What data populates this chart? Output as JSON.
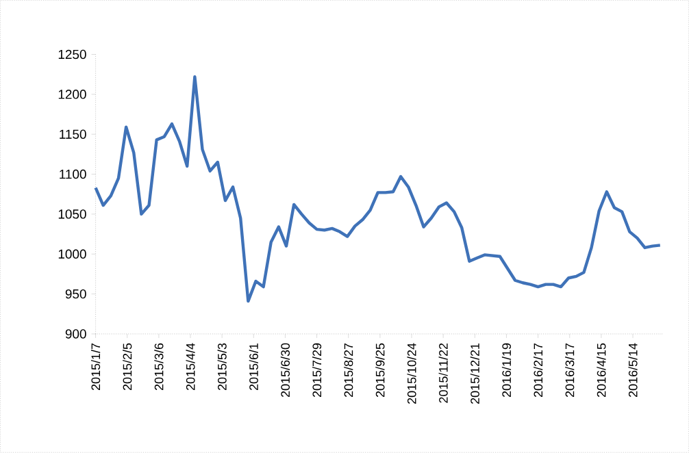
{
  "chart_data": {
    "type": "line",
    "color": "#3f72b8",
    "line_style": "solid",
    "marker": "none",
    "x": [
      "2015-01-07",
      "2015-01-14",
      "2015-01-21",
      "2015-01-28",
      "2015-02-04",
      "2015-02-11",
      "2015-02-18",
      "2015-02-25",
      "2015-03-04",
      "2015-03-11",
      "2015-03-18",
      "2015-03-25",
      "2015-04-01",
      "2015-04-08",
      "2015-04-15",
      "2015-04-22",
      "2015-04-29",
      "2015-05-06",
      "2015-05-13",
      "2015-05-20",
      "2015-05-27",
      "2015-06-03",
      "2015-06-10",
      "2015-06-17",
      "2015-06-24",
      "2015-07-01",
      "2015-07-08",
      "2015-07-15",
      "2015-07-22",
      "2015-07-29",
      "2015-08-05",
      "2015-08-12",
      "2015-08-19",
      "2015-08-26",
      "2015-09-02",
      "2015-09-09",
      "2015-09-16",
      "2015-09-23",
      "2015-09-30",
      "2015-10-07",
      "2015-10-14",
      "2015-10-21",
      "2015-10-28",
      "2015-11-04",
      "2015-11-11",
      "2015-11-18",
      "2015-11-25",
      "2015-12-02",
      "2015-12-09",
      "2015-12-16",
      "2015-12-23",
      "2015-12-30",
      "2016-01-06",
      "2016-01-13",
      "2016-01-20",
      "2016-01-27",
      "2016-02-03",
      "2016-02-10",
      "2016-02-17",
      "2016-02-24",
      "2016-03-02",
      "2016-03-09",
      "2016-03-16",
      "2016-03-23",
      "2016-03-30",
      "2016-04-06",
      "2016-04-13",
      "2016-04-20",
      "2016-04-27",
      "2016-05-04",
      "2016-05-11",
      "2016-05-18",
      "2016-05-25",
      "2016-06-01",
      "2016-06-08"
    ],
    "values": [
      1083,
      1061,
      1073,
      1095,
      1159,
      1127,
      1050,
      1061,
      1143,
      1147,
      1163,
      1141,
      1110,
      1222,
      1131,
      1104,
      1115,
      1067,
      1084,
      1045,
      941,
      966,
      959,
      1015,
      1034,
      1010,
      1062,
      1050,
      1039,
      1031,
      1030,
      1032,
      1028,
      1022,
      1035,
      1043,
      1055,
      1077,
      1077,
      1078,
      1097,
      1084,
      1061,
      1034,
      1045,
      1059,
      1064,
      1053,
      1033,
      991,
      995,
      999,
      998,
      997,
      982,
      967,
      964,
      962,
      959,
      962,
      962,
      959,
      970,
      972,
      977,
      1008,
      1054,
      1078,
      1058,
      1053,
      1028,
      1020,
      1008,
      1010,
      1011
    ],
    "xlim": [
      "2015-01-07",
      "2016-06-11"
    ],
    "xticks": [
      {
        "value": "2015-01-07",
        "label": "2015/1/7"
      },
      {
        "value": "2015-02-05",
        "label": "2015/2/5"
      },
      {
        "value": "2015-03-06",
        "label": "2015/3/6"
      },
      {
        "value": "2015-04-04",
        "label": "2015/4/4"
      },
      {
        "value": "2015-05-03",
        "label": "2015/5/3"
      },
      {
        "value": "2015-06-01",
        "label": "2015/6/1"
      },
      {
        "value": "2015-06-30",
        "label": "2015/6/30"
      },
      {
        "value": "2015-07-29",
        "label": "2015/7/29"
      },
      {
        "value": "2015-08-27",
        "label": "2015/8/27"
      },
      {
        "value": "2015-09-25",
        "label": "2015/9/25"
      },
      {
        "value": "2015-10-24",
        "label": "2015/10/24"
      },
      {
        "value": "2015-11-22",
        "label": "2015/11/22"
      },
      {
        "value": "2015-12-21",
        "label": "2015/12/21"
      },
      {
        "value": "2016-01-19",
        "label": "2016/1/19"
      },
      {
        "value": "2016-02-17",
        "label": "2016/2/17"
      },
      {
        "value": "2016-03-17",
        "label": "2016/3/17"
      },
      {
        "value": "2016-04-15",
        "label": "2016/4/15"
      },
      {
        "value": "2016-05-14",
        "label": "2016/5/14"
      }
    ],
    "ylim": [
      900,
      1250
    ],
    "yticks": [
      900,
      950,
      1000,
      1050,
      1100,
      1150,
      1200,
      1250
    ]
  }
}
